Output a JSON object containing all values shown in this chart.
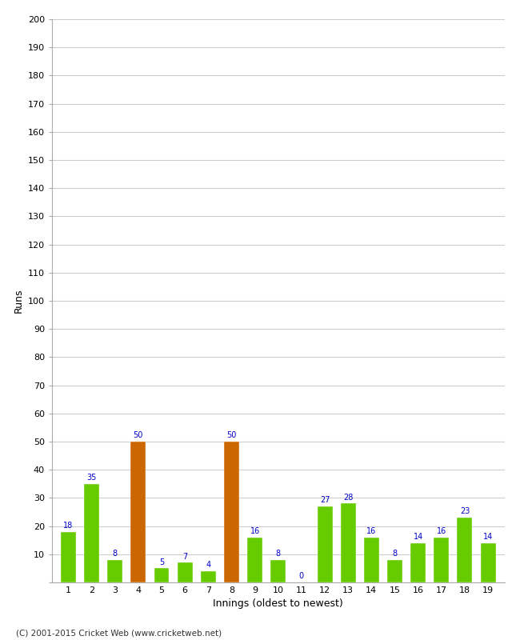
{
  "innings": [
    1,
    2,
    3,
    4,
    5,
    6,
    7,
    8,
    9,
    10,
    11,
    12,
    13,
    14,
    15,
    16,
    17,
    18,
    19
  ],
  "runs": [
    18,
    35,
    8,
    50,
    5,
    7,
    4,
    50,
    16,
    8,
    0,
    27,
    28,
    16,
    8,
    14,
    16,
    23,
    14
  ],
  "bar_colors": [
    "#66cc00",
    "#66cc00",
    "#66cc00",
    "#cc6600",
    "#66cc00",
    "#66cc00",
    "#66cc00",
    "#cc6600",
    "#66cc00",
    "#66cc00",
    "#66cc00",
    "#66cc00",
    "#66cc00",
    "#66cc00",
    "#66cc00",
    "#66cc00",
    "#66cc00",
    "#66cc00",
    "#66cc00"
  ],
  "xlabel": "Innings (oldest to newest)",
  "ylabel": "Runs",
  "ylim": [
    0,
    200
  ],
  "yticks": [
    0,
    10,
    20,
    30,
    40,
    50,
    60,
    70,
    80,
    90,
    100,
    110,
    120,
    130,
    140,
    150,
    160,
    170,
    180,
    190,
    200
  ],
  "label_color": "#0000cc",
  "background_color": "#ffffff",
  "grid_color": "#cccccc",
  "footer": "(C) 2001-2015 Cricket Web (www.cricketweb.net)",
  "bar_width": 0.65,
  "tick_fontsize": 8,
  "label_fontsize": 7,
  "axis_fontsize": 9
}
